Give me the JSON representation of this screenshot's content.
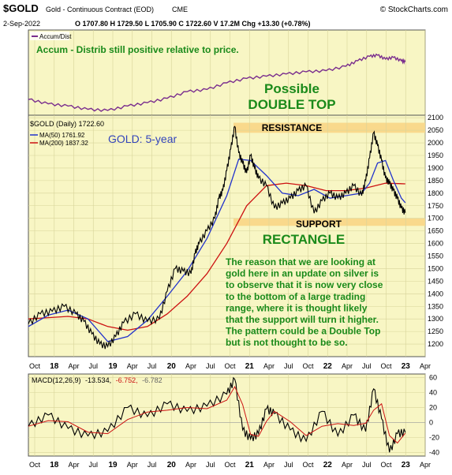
{
  "header": {
    "symbol": "$GOLD",
    "name": "Gold - Continuous Contract (EOD)",
    "exchange": "CME",
    "date": "2-Sep-2022",
    "quote": "O 1707.80  H 1729.50  L 1705.90  C 1722.60  V 17.2M  Chg +13.30 (+0.78%)",
    "copyright": "© StockCharts.com"
  },
  "accum_panel": {
    "legend": "Accum/Dist",
    "annotation": "Accum - Distrib still positive relative to price."
  },
  "price_panel": {
    "legend_price": "$GOLD (Daily) 1722.60",
    "legend_ma50": "MA(50) 1761.92",
    "legend_ma200": "MA(200) 1837.32",
    "gold_label": "GOLD: 5-year",
    "double_top_1": "Possible",
    "double_top_2": "DOUBLE TOP",
    "resistance_label": "RESISTANCE",
    "support_label": "SUPPORT",
    "rectangle_label": "RECTANGLE",
    "commentary": [
      "The reason that we are looking at",
      "gold here in an update on silver is",
      "to observe that it is now very close",
      "to the bottom of a large trading",
      "range, where it is thought likely",
      "that the support will turn it higher.",
      "The pattern could be a Double Top",
      "but is not thought to be so."
    ]
  },
  "macd_panel": {
    "legend_label": "MACD(12,26,9)",
    "legend_v1": "-13.534,",
    "legend_v2": "-6.752,",
    "legend_v3": "-6.782"
  },
  "colors": {
    "panel_bg": "#f8f6c4",
    "band": "#f9d98c",
    "price": "#000000",
    "ma50": "#2233cc",
    "ma200": "#cc1111",
    "accum": "#7a2e8e",
    "annotation_green": "#1a8a1a",
    "gold_label_blue": "#3344bb"
  },
  "chart_data": {
    "type": "line",
    "x_ticks": [
      "Oct",
      "18",
      "Apr",
      "Jul",
      "19",
      "Apr",
      "Jul",
      "20",
      "Apr",
      "Jul",
      "Oct",
      "21",
      "Apr",
      "Jul",
      "Oct",
      "22",
      "Apr",
      "Jul",
      "Oct",
      "23",
      "Apr"
    ],
    "price_axis": {
      "ylim": [
        1150,
        2110
      ],
      "ticks": [
        1200,
        1250,
        1300,
        1350,
        1400,
        1450,
        1500,
        1550,
        1600,
        1650,
        1700,
        1750,
        1800,
        1850,
        1900,
        1950,
        2000,
        2050,
        2100
      ]
    },
    "macd_axis": {
      "ylim": [
        -45,
        65
      ],
      "ticks": [
        60,
        40,
        20,
        0,
        -20,
        -40
      ]
    },
    "resistance_zone": [
      2040,
      2080
    ],
    "support_zone": [
      1670,
      1700
    ],
    "series": [
      {
        "name": "$GOLD (Daily)",
        "t": [
          0,
          0.03,
          0.06,
          0.09,
          0.12,
          0.14,
          0.16,
          0.18,
          0.2,
          0.22,
          0.24,
          0.27,
          0.3,
          0.33,
          0.35,
          0.37,
          0.39,
          0.41,
          0.42,
          0.43,
          0.45,
          0.47,
          0.48,
          0.49,
          0.5,
          0.51,
          0.52,
          0.53,
          0.54,
          0.55,
          0.56,
          0.57,
          0.58,
          0.6,
          0.62,
          0.64,
          0.66,
          0.68,
          0.7,
          0.72,
          0.74,
          0.76,
          0.78,
          0.8,
          0.82,
          0.84,
          0.85,
          0.86,
          0.87,
          0.88,
          0.89,
          0.9,
          0.91,
          0.92,
          0.93,
          0.94,
          0.95
        ],
        "values": [
          1280,
          1320,
          1330,
          1350,
          1320,
          1290,
          1240,
          1200,
          1190,
          1230,
          1285,
          1320,
          1290,
          1300,
          1410,
          1500,
          1490,
          1480,
          1560,
          1600,
          1650,
          1700,
          1780,
          1810,
          1890,
          1975,
          2065,
          1960,
          1920,
          1880,
          1950,
          1900,
          1860,
          1830,
          1740,
          1760,
          1780,
          1810,
          1830,
          1720,
          1770,
          1800,
          1780,
          1800,
          1830,
          1790,
          1850,
          1940,
          2040,
          1990,
          1930,
          1860,
          1840,
          1810,
          1780,
          1740,
          1722
        ]
      },
      {
        "name": "MA(50)",
        "t": [
          0,
          0.05,
          0.1,
          0.15,
          0.2,
          0.25,
          0.3,
          0.35,
          0.4,
          0.45,
          0.5,
          0.53,
          0.56,
          0.6,
          0.64,
          0.68,
          0.72,
          0.76,
          0.8,
          0.84,
          0.86,
          0.88,
          0.9,
          0.92,
          0.94,
          0.95
        ],
        "values": [
          1270,
          1315,
          1335,
          1300,
          1210,
          1230,
          1295,
          1390,
          1490,
          1620,
          1790,
          1935,
          1930,
          1870,
          1800,
          1790,
          1815,
          1780,
          1790,
          1800,
          1840,
          1920,
          1930,
          1850,
          1780,
          1762
        ]
      },
      {
        "name": "MA(200)",
        "t": [
          0,
          0.05,
          0.1,
          0.15,
          0.2,
          0.25,
          0.3,
          0.35,
          0.4,
          0.45,
          0.5,
          0.55,
          0.6,
          0.65,
          0.7,
          0.75,
          0.8,
          0.85,
          0.9,
          0.95
        ],
        "values": [
          1300,
          1305,
          1310,
          1300,
          1270,
          1255,
          1270,
          1320,
          1390,
          1480,
          1600,
          1750,
          1830,
          1840,
          1830,
          1810,
          1810,
          1820,
          1840,
          1837
        ]
      },
      {
        "name": "Accum/Dist",
        "t": [
          0,
          0.05,
          0.1,
          0.15,
          0.2,
          0.25,
          0.3,
          0.35,
          0.4,
          0.45,
          0.5,
          0.55,
          0.6,
          0.65,
          0.7,
          0.75,
          0.8,
          0.83,
          0.86,
          0.88,
          0.9,
          0.92,
          0.94,
          0.95
        ],
        "values": [
          0.2,
          0.12,
          0.08,
          0.02,
          0.0,
          0.08,
          0.14,
          0.22,
          0.34,
          0.38,
          0.5,
          0.58,
          0.62,
          0.66,
          0.7,
          0.72,
          0.8,
          0.9,
          0.98,
          1.0,
          0.93,
          0.96,
          0.9,
          0.88
        ]
      },
      {
        "name": "MACD",
        "t": [
          0,
          0.05,
          0.1,
          0.15,
          0.2,
          0.25,
          0.3,
          0.35,
          0.4,
          0.45,
          0.5,
          0.52,
          0.54,
          0.56,
          0.58,
          0.6,
          0.62,
          0.66,
          0.7,
          0.74,
          0.78,
          0.82,
          0.85,
          0.87,
          0.89,
          0.91,
          0.93,
          0.95
        ],
        "values": [
          -5,
          10,
          -8,
          -18,
          -12,
          20,
          8,
          25,
          15,
          22,
          38,
          58,
          -10,
          -22,
          -15,
          18,
          12,
          -10,
          -25,
          15,
          -18,
          10,
          -12,
          45,
          5,
          -40,
          -15,
          -13.5
        ]
      }
    ]
  }
}
